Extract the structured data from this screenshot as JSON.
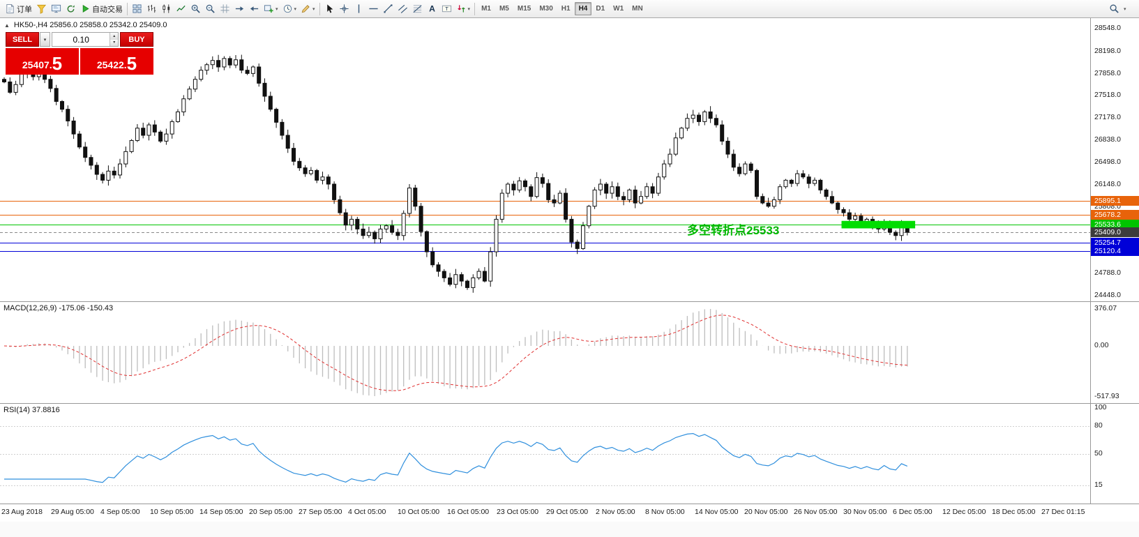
{
  "glyphs": {
    "caret_down": "▾",
    "caret_up": "▴",
    "collapse_up": "▲"
  },
  "toolbar": {
    "items": [
      {
        "name": "new-order-button",
        "icon": "doc-plus",
        "label": "订单"
      },
      {
        "name": "new-chart-button",
        "icon": "funnel"
      },
      {
        "name": "profiles-button",
        "icon": "monitor"
      },
      {
        "name": "refresh-button",
        "icon": "refresh"
      },
      {
        "name": "autotrading-button",
        "icon": "play-green",
        "label": "自动交易"
      },
      {
        "sep": true
      },
      {
        "name": "tile-windows-button",
        "icon": "tile"
      },
      {
        "name": "bar-chart-button",
        "icon": "bars"
      },
      {
        "name": "candlestick-chart-button",
        "icon": "candles"
      },
      {
        "name": "line-chart-button",
        "icon": "line"
      },
      {
        "name": "zoom-in-button",
        "icon": "zoom-in"
      },
      {
        "name": "zoom-out-button",
        "icon": "zoom-out"
      },
      {
        "name": "grid-button",
        "icon": "grid"
      },
      {
        "name": "auto-scroll-button",
        "icon": "scroll-right"
      },
      {
        "name": "chart-shift-button",
        "icon": "shift-left"
      },
      {
        "name": "indicators-button",
        "icon": "plus-green",
        "caret": true
      },
      {
        "name": "periods-button",
        "icon": "clock",
        "caret": true
      },
      {
        "name": "templates-button",
        "icon": "pencil",
        "caret": true
      },
      {
        "sep": true
      },
      {
        "name": "cursor-button",
        "icon": "cursor"
      },
      {
        "name": "crosshair-button",
        "icon": "crosshair"
      },
      {
        "name": "vertical-line-button",
        "icon": "vline"
      },
      {
        "name": "horizontal-line-button",
        "icon": "hline"
      },
      {
        "name": "trendline-button",
        "icon": "trendline"
      },
      {
        "name": "equidistant-channel-button",
        "icon": "channel"
      },
      {
        "name": "fibonacci-button",
        "icon": "fibo"
      },
      {
        "name": "text-button",
        "icon": "textA"
      },
      {
        "name": "text-label-button",
        "icon": "textT"
      },
      {
        "name": "arrows-button",
        "icon": "arrows",
        "caret": true
      },
      {
        "sep": true
      }
    ],
    "timeframes": [
      {
        "label": "M1"
      },
      {
        "label": "M5"
      },
      {
        "label": "M15"
      },
      {
        "label": "M30"
      },
      {
        "label": "H1"
      },
      {
        "label": "H4",
        "active": true
      },
      {
        "label": "D1"
      },
      {
        "label": "W1"
      },
      {
        "label": "MN"
      }
    ],
    "right_items": [
      {
        "name": "search-button",
        "icon": "search"
      },
      {
        "name": "toolbar-more-button",
        "caret": true
      }
    ]
  },
  "trade_panel": {
    "sell_label": "SELL",
    "buy_label": "BUY",
    "volume": "0.10",
    "sell_price_main": "25407.",
    "sell_price_big": "5",
    "buy_price_main": "25422.",
    "buy_price_big": "5"
  },
  "chart": {
    "header": "HK50-,H4  25856.0 25858.0 25342.0 25409.0",
    "annotation": {
      "text": "多空转折点25533",
      "color": "#00b800",
      "x": 985,
      "baseline_price": 25380
    },
    "levels": [
      {
        "name": "resistance-line-1",
        "price": 25895.1,
        "label": "25895.1",
        "color": "#e8630a",
        "style": "solid"
      },
      {
        "name": "resistance-line-2",
        "price": 25678.2,
        "label": "25678.2",
        "color": "#e8630a",
        "style": "solid"
      },
      {
        "name": "pivot-green-line",
        "price": 25533.6,
        "label": "25533.6",
        "color": "#00c400",
        "style": "solid"
      },
      {
        "name": "current-price-line",
        "price": 25409.0,
        "label": "25409.0",
        "color": "#3c3c3c",
        "style": "dashed"
      },
      {
        "name": "support-line-1",
        "price": 25254.7,
        "label": "25254.7",
        "color": "#0000d8",
        "style": "solid"
      },
      {
        "name": "support-line-2",
        "price": 25120.4,
        "label": "25120.4",
        "color": "#0000d8",
        "style": "solid"
      }
    ],
    "highlight_zone": {
      "price_top": 25585,
      "price_bottom": 25470,
      "start_candle": 145,
      "end_candle": 157,
      "color": "#00dd00"
    },
    "price_scale_ticks": [
      "28548.0",
      "28198.0",
      "27858.0",
      "27518.0",
      "27178.0",
      "26838.0",
      "26498.0",
      "26148.0",
      "25808.0",
      "24788.0",
      "24448.0"
    ],
    "price_range": {
      "max": 28700,
      "min": 24350
    }
  },
  "macd": {
    "label": "MACD(12,26,9) -175.06 -150.43",
    "scale": [
      "376.07",
      "0.00",
      "-517.93"
    ],
    "params": {
      "fast": 12,
      "slow": 26,
      "signal": 9
    }
  },
  "rsi": {
    "label": "RSI(14) 37.8816",
    "period": 14,
    "scale": [
      "100",
      "80",
      "50",
      "15"
    ],
    "scale_values": [
      100,
      80,
      50,
      15
    ],
    "level_lines": [
      80,
      50,
      15
    ]
  },
  "time_axis": {
    "labels": [
      "23 Aug 2018",
      "29 Aug 05:00",
      "4 Sep 05:00",
      "10 Sep 05:00",
      "14 Sep 05:00",
      "20 Sep 05:00",
      "27 Sep 05:00",
      "4 Oct 05:00",
      "10 Oct 05:00",
      "16 Oct 05:00",
      "23 Oct 05:00",
      "29 Oct 05:00",
      "2 Nov 05:00",
      "8 Nov 05:00",
      "14 Nov 05:00",
      "20 Nov 05:00",
      "26 Nov 05:00",
      "30 Nov 05:00",
      "6 Dec 05:00",
      "12 Dec 05:00",
      "18 Dec 05:00",
      "27 Dec 01:15"
    ]
  },
  "chart_data": {
    "type": "candlestick",
    "symbol": "HK50-",
    "timeframe": "H4",
    "current_bar_ohlc": {
      "open": 25856.0,
      "high": 25858.0,
      "low": 25342.0,
      "close": 25409.0
    },
    "y_range": [
      24448.0,
      28548.0
    ],
    "closes": [
      27720,
      27560,
      27680,
      27940,
      27860,
      27800,
      27880,
      27760,
      27620,
      27420,
      27300,
      27120,
      26920,
      26720,
      26560,
      26440,
      26300,
      26210,
      26350,
      26290,
      26460,
      26650,
      26820,
      27010,
      26900,
      27060,
      26950,
      26810,
      26920,
      27110,
      27260,
      27460,
      27610,
      27760,
      27900,
      27985,
      28050,
      27950,
      28080,
      27980,
      28060,
      27900,
      27850,
      27950,
      27700,
      27500,
      27300,
      27100,
      26900,
      26700,
      26500,
      26400,
      26310,
      26360,
      26210,
      26260,
      26150,
      25910,
      25710,
      25520,
      25610,
      25460,
      25360,
      25410,
      25310,
      25460,
      25510,
      25410,
      25360,
      25700,
      26090,
      25810,
      25420,
      25110,
      24910,
      24810,
      24710,
      24610,
      24760,
      24660,
      24560,
      24710,
      24810,
      24660,
      25110,
      25610,
      26010,
      26150,
      26060,
      26200,
      26110,
      25960,
      26250,
      26160,
      25910,
      25860,
      26010,
      25610,
      25260,
      25160,
      25510,
      25810,
      26060,
      26150,
      26010,
      26110,
      25960,
      25910,
      26060,
      25860,
      25960,
      26110,
      26010,
      26260,
      26460,
      26610,
      26860,
      27010,
      27160,
      27210,
      27110,
      27260,
      27160,
      27060,
      26810,
      26610,
      26410,
      26310,
      26460,
      26360,
      25960,
      25860,
      25810,
      25910,
      26110,
      26210,
      26160,
      26310,
      26260,
      26160,
      26210,
      26060,
      25960,
      25860,
      25760,
      25710,
      25610,
      25660,
      25560,
      25610,
      25510,
      25460,
      25560,
      25410,
      25360,
      25510,
      25409
    ]
  }
}
